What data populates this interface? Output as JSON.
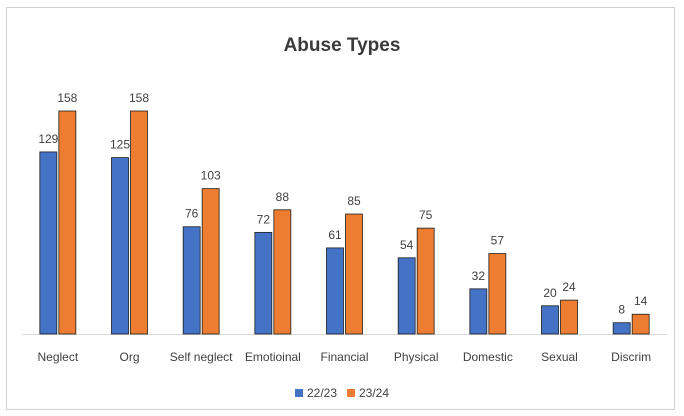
{
  "chart_data": {
    "type": "bar",
    "title": "Abuse Types",
    "xlabel": "",
    "ylabel": "",
    "categories": [
      "Neglect",
      "Org",
      "Self neglect",
      "Emotioinal",
      "Financial",
      "Physical",
      "Domestic",
      "Sexual",
      "Discrim"
    ],
    "series": [
      {
        "name": "22/23",
        "color": "#4472c4",
        "values": [
          129,
          125,
          76,
          72,
          61,
          54,
          32,
          20,
          8
        ]
      },
      {
        "name": "23/24",
        "color": "#ed7d31",
        "values": [
          158,
          158,
          103,
          88,
          85,
          75,
          57,
          24,
          14
        ]
      }
    ],
    "ylim": [
      0,
      158
    ],
    "grid": false,
    "legend": "bottom"
  }
}
